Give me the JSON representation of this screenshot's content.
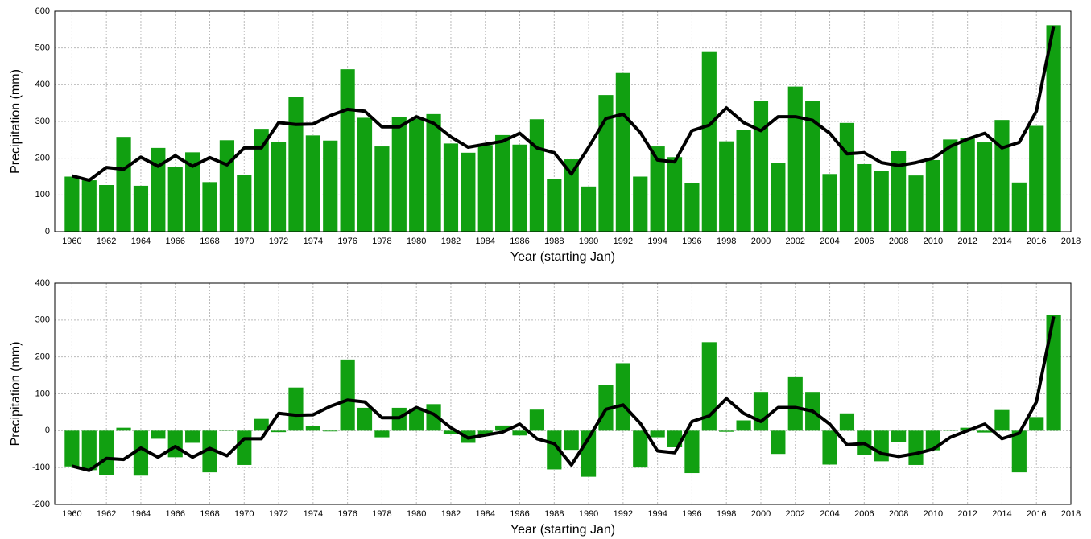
{
  "chart_data": [
    {
      "type": "bar",
      "xlabel": "Year (starting Jan)",
      "ylabel": "Precipitation (mm)",
      "x": [
        1960,
        1961,
        1962,
        1963,
        1964,
        1965,
        1966,
        1967,
        1968,
        1969,
        1970,
        1971,
        1972,
        1973,
        1974,
        1975,
        1976,
        1977,
        1978,
        1979,
        1980,
        1981,
        1982,
        1983,
        1984,
        1985,
        1986,
        1987,
        1988,
        1989,
        1990,
        1991,
        1992,
        1993,
        1994,
        1995,
        1996,
        1997,
        1998,
        1999,
        2000,
        2001,
        2002,
        2003,
        2004,
        2005,
        2006,
        2007,
        2008,
        2009,
        2010,
        2011,
        2012,
        2013,
        2014,
        2015,
        2016,
        2017
      ],
      "series": [
        {
          "type": "bar",
          "color": "#11a011",
          "values": [
            150,
            140,
            127,
            258,
            125,
            228,
            177,
            216,
            135,
            249,
            155,
            280,
            244,
            366,
            262,
            248,
            442,
            310,
            232,
            311,
            307,
            320,
            240,
            215,
            236,
            263,
            237,
            306,
            143,
            197,
            123,
            372,
            432,
            150,
            232,
            203,
            133,
            489,
            246,
            278,
            355,
            187,
            395,
            355,
            157,
            296,
            184,
            166,
            219,
            153,
            195,
            251,
            256,
            243,
            304,
            134,
            288,
            562
          ]
        },
        {
          "type": "line",
          "color": "#000000",
          "values": [
            152,
            140,
            175,
            170,
            203,
            178,
            207,
            178,
            202,
            182,
            228,
            228,
            297,
            292,
            293,
            316,
            333,
            328,
            285,
            285,
            313,
            295,
            258,
            230,
            238,
            246,
            268,
            228,
            215,
            157,
            230,
            308,
            320,
            270,
            195,
            190,
            275,
            290,
            337,
            297,
            275,
            313,
            313,
            303,
            268,
            212,
            215,
            188,
            180,
            188,
            200,
            232,
            252,
            268,
            228,
            243,
            328,
            560
          ]
        }
      ],
      "xlim": [
        1959,
        2018
      ],
      "xticks": [
        1960,
        1962,
        1964,
        1966,
        1968,
        1970,
        1972,
        1974,
        1976,
        1978,
        1980,
        1982,
        1984,
        1986,
        1988,
        1990,
        1992,
        1994,
        1996,
        1998,
        2000,
        2002,
        2004,
        2006,
        2008,
        2010,
        2012,
        2014,
        2016,
        2018
      ],
      "ylim": [
        0,
        600
      ],
      "yticks": [
        0,
        100,
        200,
        300,
        400,
        500,
        600
      ],
      "grid": true
    },
    {
      "type": "bar",
      "xlabel": "Year (starting Jan)",
      "ylabel": "Precipitation (mm)",
      "x": [
        1960,
        1961,
        1962,
        1963,
        1964,
        1965,
        1966,
        1967,
        1968,
        1969,
        1970,
        1971,
        1972,
        1973,
        1974,
        1975,
        1976,
        1977,
        1978,
        1979,
        1980,
        1981,
        1982,
        1983,
        1984,
        1985,
        1986,
        1987,
        1988,
        1989,
        1990,
        1991,
        1992,
        1993,
        1994,
        1995,
        1996,
        1997,
        1998,
        1999,
        2000,
        2001,
        2002,
        2003,
        2004,
        2005,
        2006,
        2007,
        2008,
        2009,
        2010,
        2011,
        2012,
        2013,
        2014,
        2015,
        2016,
        2017
      ],
      "series": [
        {
          "type": "bar",
          "color": "#11a011",
          "values": [
            -97,
            -107,
            -120,
            8,
            -122,
            -22,
            -72,
            -33,
            -113,
            2,
            -93,
            32,
            -4,
            117,
            13,
            -2,
            193,
            62,
            -18,
            62,
            60,
            72,
            -8,
            -33,
            -12,
            14,
            -13,
            57,
            -105,
            -52,
            -125,
            123,
            183,
            -100,
            -18,
            -45,
            -115,
            240,
            -3,
            28,
            105,
            -63,
            145,
            105,
            -92,
            47,
            -66,
            -83,
            -30,
            -93,
            -53,
            2,
            8,
            -5,
            56,
            -113,
            37,
            313
          ]
        },
        {
          "type": "line",
          "color": "#000000",
          "values": [
            -96,
            -108,
            -75,
            -78,
            -47,
            -72,
            -43,
            -72,
            -48,
            -68,
            -22,
            -22,
            47,
            42,
            43,
            66,
            83,
            78,
            35,
            35,
            63,
            45,
            8,
            -20,
            -12,
            -4,
            18,
            -22,
            -35,
            -93,
            -20,
            58,
            70,
            20,
            -55,
            -60,
            25,
            40,
            87,
            47,
            25,
            63,
            63,
            53,
            18,
            -38,
            -35,
            -62,
            -70,
            -62,
            -50,
            -18,
            0,
            18,
            -22,
            -7,
            78,
            310
          ]
        }
      ],
      "xlim": [
        1959,
        2018
      ],
      "xticks": [
        1960,
        1962,
        1964,
        1966,
        1968,
        1970,
        1972,
        1974,
        1976,
        1978,
        1980,
        1982,
        1984,
        1986,
        1988,
        1990,
        1992,
        1994,
        1996,
        1998,
        2000,
        2002,
        2004,
        2006,
        2008,
        2010,
        2012,
        2014,
        2016,
        2018
      ],
      "ylim": [
        -200,
        400
      ],
      "yticks": [
        -200,
        -100,
        0,
        100,
        200,
        300,
        400
      ],
      "grid": true
    }
  ]
}
